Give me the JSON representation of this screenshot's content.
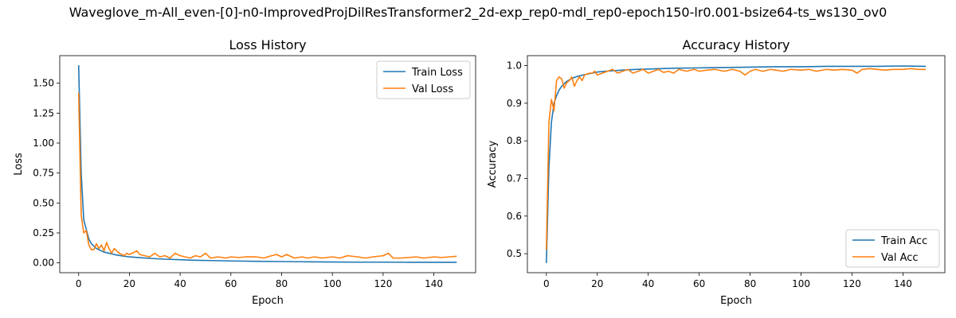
{
  "figure": {
    "suptitle": "Waveglove_m-All_even-[0]-n0-ImprovedProjDilResTransformer2_2d-exp_rep0-mdl_rep0-epoch150-lr0.001-bsize64-ts_ws130_ov0"
  },
  "chart_data": [
    {
      "type": "line",
      "title": "Loss History",
      "xlabel": "Epoch",
      "ylabel": "Loss",
      "xlim": [
        -7.45,
        156.45
      ],
      "ylim": [
        -0.082,
        1.73
      ],
      "xticks": [
        0,
        20,
        40,
        60,
        80,
        100,
        120,
        140
      ],
      "xtick_labels": [
        "0",
        "20",
        "40",
        "60",
        "80",
        "100",
        "120",
        "140"
      ],
      "yticks": [
        0.0,
        0.25,
        0.5,
        0.75,
        1.0,
        1.25,
        1.5
      ],
      "ytick_labels": [
        "0.00",
        "0.25",
        "0.50",
        "0.75",
        "1.00",
        "1.25",
        "1.50"
      ],
      "grid": false,
      "legend": "upper-right",
      "series": [
        {
          "name": "Train Loss",
          "color": "#1f77b4",
          "points": [
            [
              0,
              1.65
            ],
            [
              1,
              0.75
            ],
            [
              2,
              0.36
            ],
            [
              3,
              0.28
            ],
            [
              4,
              0.2
            ],
            [
              5,
              0.16
            ],
            [
              6,
              0.14
            ],
            [
              7,
              0.12
            ],
            [
              8,
              0.11
            ],
            [
              9,
              0.1
            ],
            [
              10,
              0.09
            ],
            [
              12,
              0.08
            ],
            [
              15,
              0.065
            ],
            [
              18,
              0.055
            ],
            [
              20,
              0.05
            ],
            [
              25,
              0.042
            ],
            [
              30,
              0.035
            ],
            [
              35,
              0.03
            ],
            [
              40,
              0.026
            ],
            [
              45,
              0.022
            ],
            [
              50,
              0.02
            ],
            [
              60,
              0.016
            ],
            [
              70,
              0.013
            ],
            [
              80,
              0.011
            ],
            [
              90,
              0.009
            ],
            [
              100,
              0.007
            ],
            [
              110,
              0.006
            ],
            [
              120,
              0.006
            ],
            [
              130,
              0.005
            ],
            [
              140,
              0.005
            ],
            [
              149,
              0.005
            ]
          ]
        },
        {
          "name": "Val Loss",
          "color": "#ff7f0e",
          "points": [
            [
              0,
              1.42
            ],
            [
              1,
              0.4
            ],
            [
              2,
              0.25
            ],
            [
              3,
              0.27
            ],
            [
              4,
              0.15
            ],
            [
              5,
              0.11
            ],
            [
              6,
              0.11
            ],
            [
              7,
              0.16
            ],
            [
              8,
              0.12
            ],
            [
              9,
              0.15
            ],
            [
              10,
              0.1
            ],
            [
              11,
              0.17
            ],
            [
              12,
              0.12
            ],
            [
              13,
              0.08
            ],
            [
              14,
              0.12
            ],
            [
              15,
              0.1
            ],
            [
              16,
              0.08
            ],
            [
              17,
              0.07
            ],
            [
              18,
              0.06
            ],
            [
              19,
              0.08
            ],
            [
              20,
              0.07
            ],
            [
              22,
              0.09
            ],
            [
              23,
              0.1
            ],
            [
              24,
              0.07
            ],
            [
              26,
              0.06
            ],
            [
              28,
              0.05
            ],
            [
              30,
              0.08
            ],
            [
              32,
              0.05
            ],
            [
              34,
              0.06
            ],
            [
              36,
              0.04
            ],
            [
              38,
              0.08
            ],
            [
              40,
              0.06
            ],
            [
              42,
              0.05
            ],
            [
              44,
              0.04
            ],
            [
              46,
              0.06
            ],
            [
              48,
              0.05
            ],
            [
              50,
              0.08
            ],
            [
              52,
              0.04
            ],
            [
              55,
              0.05
            ],
            [
              58,
              0.04
            ],
            [
              60,
              0.05
            ],
            [
              63,
              0.045
            ],
            [
              66,
              0.05
            ],
            [
              70,
              0.05
            ],
            [
              73,
              0.04
            ],
            [
              76,
              0.06
            ],
            [
              78,
              0.07
            ],
            [
              80,
              0.05
            ],
            [
              82,
              0.07
            ],
            [
              85,
              0.04
            ],
            [
              88,
              0.05
            ],
            [
              90,
              0.04
            ],
            [
              93,
              0.05
            ],
            [
              96,
              0.04
            ],
            [
              100,
              0.05
            ],
            [
              103,
              0.04
            ],
            [
              106,
              0.06
            ],
            [
              110,
              0.05
            ],
            [
              113,
              0.04
            ],
            [
              116,
              0.05
            ],
            [
              120,
              0.06
            ],
            [
              122,
              0.08
            ],
            [
              124,
              0.04
            ],
            [
              127,
              0.04
            ],
            [
              130,
              0.045
            ],
            [
              133,
              0.05
            ],
            [
              136,
              0.04
            ],
            [
              140,
              0.05
            ],
            [
              143,
              0.045
            ],
            [
              146,
              0.05
            ],
            [
              149,
              0.055
            ]
          ]
        }
      ]
    },
    {
      "type": "line",
      "title": "Accuracy History",
      "xlabel": "Epoch",
      "ylabel": "Accuracy",
      "xlim": [
        -7.45,
        156.45
      ],
      "ylim": [
        0.4495,
        1.0265
      ],
      "xticks": [
        0,
        20,
        40,
        60,
        80,
        100,
        120,
        140
      ],
      "xtick_labels": [
        "0",
        "20",
        "40",
        "60",
        "80",
        "100",
        "120",
        "140"
      ],
      "yticks": [
        0.5,
        0.6,
        0.7,
        0.8,
        0.9,
        1.0
      ],
      "ytick_labels": [
        "0.5",
        "0.6",
        "0.7",
        "0.8",
        "0.9",
        "1.0"
      ],
      "grid": false,
      "legend": "lower-right",
      "series": [
        {
          "name": "Train Acc",
          "color": "#1f77b4",
          "points": [
            [
              0,
              0.475
            ],
            [
              1,
              0.73
            ],
            [
              2,
              0.85
            ],
            [
              3,
              0.9
            ],
            [
              4,
              0.92
            ],
            [
              5,
              0.935
            ],
            [
              6,
              0.945
            ],
            [
              7,
              0.952
            ],
            [
              8,
              0.958
            ],
            [
              9,
              0.962
            ],
            [
              10,
              0.966
            ],
            [
              12,
              0.971
            ],
            [
              15,
              0.976
            ],
            [
              18,
              0.98
            ],
            [
              20,
              0.983
            ],
            [
              25,
              0.986
            ],
            [
              30,
              0.988
            ],
            [
              35,
              0.99
            ],
            [
              40,
              0.991
            ],
            [
              45,
              0.992
            ],
            [
              50,
              0.993
            ],
            [
              60,
              0.994
            ],
            [
              70,
              0.995
            ],
            [
              80,
              0.996
            ],
            [
              90,
              0.997
            ],
            [
              100,
              0.997
            ],
            [
              110,
              0.998
            ],
            [
              120,
              0.998
            ],
            [
              130,
              0.998
            ],
            [
              140,
              0.999
            ],
            [
              149,
              0.998
            ]
          ]
        },
        {
          "name": "Val Acc",
          "color": "#ff7f0e",
          "points": [
            [
              0,
              0.51
            ],
            [
              1,
              0.85
            ],
            [
              2,
              0.91
            ],
            [
              3,
              0.88
            ],
            [
              4,
              0.96
            ],
            [
              5,
              0.97
            ],
            [
              6,
              0.965
            ],
            [
              7,
              0.94
            ],
            [
              8,
              0.955
            ],
            [
              9,
              0.96
            ],
            [
              10,
              0.97
            ],
            [
              11,
              0.945
            ],
            [
              12,
              0.96
            ],
            [
              13,
              0.97
            ],
            [
              14,
              0.96
            ],
            [
              15,
              0.975
            ],
            [
              16,
              0.978
            ],
            [
              17,
              0.98
            ],
            [
              18,
              0.98
            ],
            [
              19,
              0.985
            ],
            [
              20,
              0.975
            ],
            [
              22,
              0.98
            ],
            [
              24,
              0.985
            ],
            [
              26,
              0.99
            ],
            [
              28,
              0.98
            ],
            [
              30,
              0.985
            ],
            [
              32,
              0.99
            ],
            [
              34,
              0.98
            ],
            [
              36,
              0.985
            ],
            [
              38,
              0.99
            ],
            [
              40,
              0.98
            ],
            [
              42,
              0.985
            ],
            [
              44,
              0.99
            ],
            [
              46,
              0.982
            ],
            [
              48,
              0.985
            ],
            [
              50,
              0.98
            ],
            [
              52,
              0.99
            ],
            [
              55,
              0.985
            ],
            [
              58,
              0.99
            ],
            [
              60,
              0.985
            ],
            [
              63,
              0.988
            ],
            [
              66,
              0.99
            ],
            [
              70,
              0.985
            ],
            [
              73,
              0.99
            ],
            [
              76,
              0.985
            ],
            [
              78,
              0.975
            ],
            [
              80,
              0.985
            ],
            [
              82,
              0.99
            ],
            [
              85,
              0.985
            ],
            [
              88,
              0.99
            ],
            [
              90,
              0.988
            ],
            [
              93,
              0.985
            ],
            [
              96,
              0.99
            ],
            [
              100,
              0.988
            ],
            [
              103,
              0.99
            ],
            [
              106,
              0.985
            ],
            [
              110,
              0.99
            ],
            [
              113,
              0.988
            ],
            [
              116,
              0.99
            ],
            [
              120,
              0.988
            ],
            [
              122,
              0.98
            ],
            [
              124,
              0.99
            ],
            [
              127,
              0.992
            ],
            [
              130,
              0.99
            ],
            [
              133,
              0.988
            ],
            [
              136,
              0.99
            ],
            [
              140,
              0.99
            ],
            [
              143,
              0.992
            ],
            [
              146,
              0.99
            ],
            [
              149,
              0.99
            ]
          ]
        }
      ]
    }
  ]
}
